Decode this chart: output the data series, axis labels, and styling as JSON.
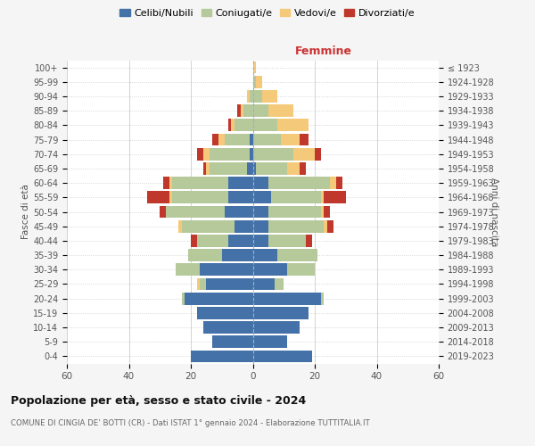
{
  "age_groups": [
    "0-4",
    "5-9",
    "10-14",
    "15-19",
    "20-24",
    "25-29",
    "30-34",
    "35-39",
    "40-44",
    "45-49",
    "50-54",
    "55-59",
    "60-64",
    "65-69",
    "70-74",
    "75-79",
    "80-84",
    "85-89",
    "90-94",
    "95-99",
    "100+"
  ],
  "birth_years": [
    "2019-2023",
    "2014-2018",
    "2009-2013",
    "2004-2008",
    "1999-2003",
    "1994-1998",
    "1989-1993",
    "1984-1988",
    "1979-1983",
    "1974-1978",
    "1969-1973",
    "1964-1968",
    "1959-1963",
    "1954-1958",
    "1949-1953",
    "1944-1948",
    "1939-1943",
    "1934-1938",
    "1929-1933",
    "1924-1928",
    "≤ 1923"
  ],
  "males": {
    "celibi": [
      20,
      13,
      16,
      18,
      22,
      15,
      17,
      10,
      8,
      6,
      9,
      8,
      8,
      2,
      1,
      1,
      0,
      0,
      0,
      0,
      0
    ],
    "coniugati": [
      0,
      0,
      0,
      0,
      1,
      2,
      8,
      11,
      10,
      17,
      19,
      18,
      18,
      12,
      13,
      8,
      6,
      3,
      1,
      0,
      0
    ],
    "vedovi": [
      0,
      0,
      0,
      0,
      0,
      1,
      0,
      0,
      0,
      1,
      0,
      1,
      1,
      1,
      2,
      2,
      1,
      1,
      1,
      0,
      0
    ],
    "divorziati": [
      0,
      0,
      0,
      0,
      0,
      0,
      0,
      0,
      2,
      0,
      2,
      7,
      2,
      1,
      2,
      2,
      1,
      1,
      0,
      0,
      0
    ]
  },
  "females": {
    "nubili": [
      19,
      11,
      15,
      18,
      22,
      7,
      11,
      8,
      5,
      5,
      5,
      6,
      5,
      1,
      0,
      0,
      0,
      0,
      0,
      0,
      0
    ],
    "coniugate": [
      0,
      0,
      0,
      0,
      1,
      3,
      9,
      13,
      12,
      18,
      17,
      16,
      20,
      10,
      13,
      9,
      8,
      5,
      3,
      1,
      0
    ],
    "vedove": [
      0,
      0,
      0,
      0,
      0,
      0,
      0,
      0,
      0,
      1,
      1,
      1,
      2,
      4,
      7,
      6,
      10,
      8,
      5,
      2,
      1
    ],
    "divorziate": [
      0,
      0,
      0,
      0,
      0,
      0,
      0,
      0,
      2,
      2,
      2,
      7,
      2,
      2,
      2,
      3,
      0,
      0,
      0,
      0,
      0
    ]
  },
  "colors": {
    "celibi_nubili": "#4472a8",
    "coniugati": "#b5c99a",
    "vedovi": "#f5c97a",
    "divorziati": "#c0382b"
  },
  "title": "Popolazione per età, sesso e stato civile - 2024",
  "subtitle": "COMUNE DI CINGIA DE' BOTTI (CR) - Dati ISTAT 1° gennaio 2024 - Elaborazione TUTTITALIA.IT",
  "xlabel_right": "Femmine",
  "ylabel_left": "Fasce di età",
  "ylabel_right": "Anni di nascita",
  "xlim": 60,
  "legend_labels": [
    "Celibi/Nubili",
    "Coniugati/e",
    "Vedovi/e",
    "Divorziati/e"
  ],
  "bg_color": "#f5f5f5",
  "plot_bg": "#ffffff",
  "grid_color": "#cccccc"
}
